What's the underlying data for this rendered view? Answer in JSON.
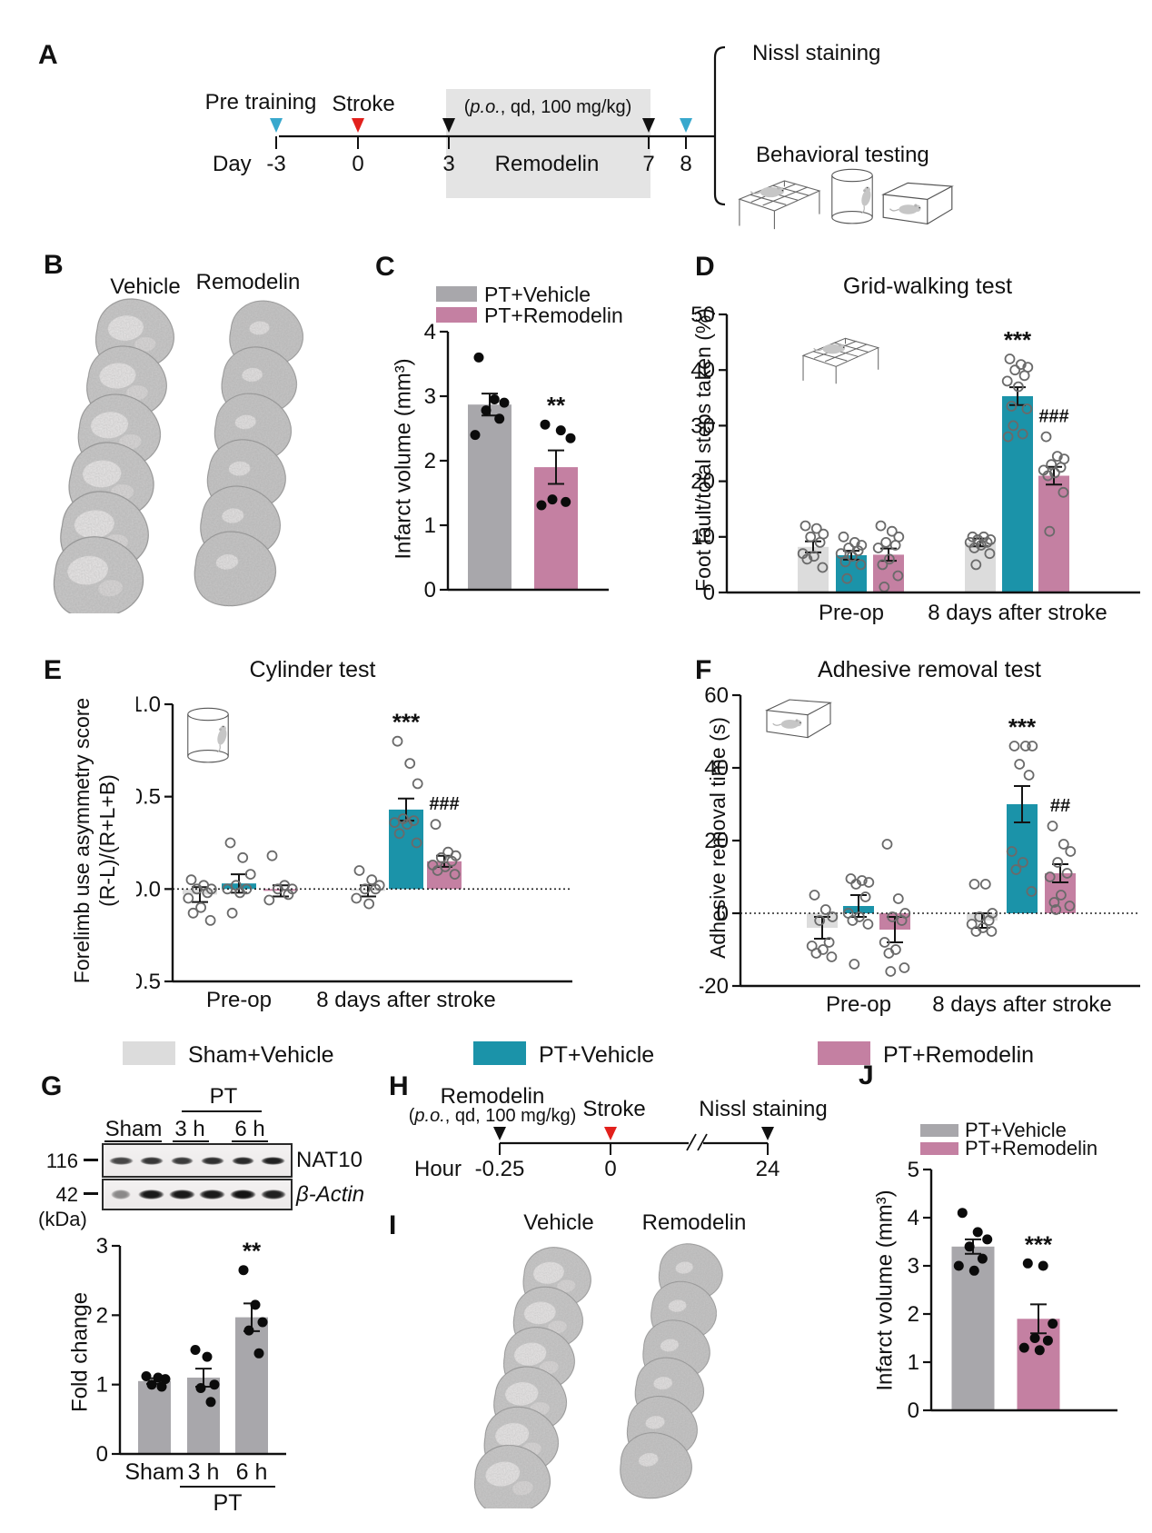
{
  "colors": {
    "bar_dark_gray": "#a8a7ab",
    "bar_light_gray": "#dcdcdc",
    "bar_teal": "#1b93a9",
    "bar_pink": "#c480a2",
    "point_open_stroke": "#6a6a6a",
    "point_filled": "#0b0b0b",
    "cyan_arrow": "#38a8cd",
    "red_arrow": "#e2201c",
    "black_arrow": "#111111",
    "timeline_box": "#e4e4e4",
    "axis": "#111111"
  },
  "panels": {
    "a": {
      "label": "A",
      "pre_training": "Pre training",
      "stroke": "Stroke",
      "dose_open": "(",
      "dose_po": "p.o.",
      "dose_rest": ", qd, 100 mg/kg)",
      "drug": "Remodelin",
      "axis": "Day",
      "days": [
        "-3",
        "0",
        "3",
        "7",
        "8"
      ],
      "nissl": "Nissl staining",
      "behavioral": "Behavioral testing"
    },
    "b": {
      "label": "B",
      "left": "Vehicle",
      "right": "Remodelin"
    },
    "c": {
      "label": "C",
      "legend": [
        "PT+Vehicle",
        "PT+Remodelin"
      ],
      "ylabel": "Infarct volume (mm³)"
    },
    "d": {
      "label": "D",
      "title": "Grid-walking test",
      "ylabel": "Foot fault/total steps taken (%)"
    },
    "e": {
      "label": "E",
      "title": "Cylinder test",
      "ylabel1": "Forelimb use asymmetry score",
      "ylabel2": "(R-L)/(R+L+B)"
    },
    "f": {
      "label": "F",
      "title": "Adhesive removal test",
      "ylabel": "Adhesive removal time (s)"
    },
    "legend_bottom": [
      {
        "key": "bar_light_gray",
        "label": "Sham+Vehicle"
      },
      {
        "key": "bar_teal",
        "label": "PT+Vehicle"
      },
      {
        "key": "bar_pink",
        "label": "PT+Remodelin"
      }
    ],
    "g": {
      "label": "G",
      "pt": "PT",
      "lanes": [
        "Sham",
        "3 h",
        "6 h"
      ],
      "mw1": "116",
      "mw2": "42",
      "kda": "(kDa)",
      "band1": "NAT10",
      "band2": "β-Actin",
      "ylabel": "Fold change"
    },
    "h": {
      "label": "H",
      "drug": "Remodelin",
      "dose_open": "(",
      "dose_po": "p.o.",
      "dose_rest": ", qd, 100 mg/kg)",
      "stroke": "Stroke",
      "nissl": "Nissl staining",
      "axis": "Hour",
      "ticks": [
        "-0.25",
        "0",
        "24"
      ]
    },
    "i": {
      "label": "I",
      "left": "Vehicle",
      "right": "Remodelin"
    },
    "j": {
      "label": "J",
      "legend": [
        "PT+Vehicle",
        "PT+Remodelin"
      ],
      "ylabel": "Infarct volume (mm³)"
    }
  },
  "chart_data": {
    "c": {
      "type": "bar",
      "title": "",
      "ylabel": "Infarct volume (mm³)",
      "ylim": [
        0,
        4
      ],
      "ytick_vals": [
        0,
        1,
        2,
        3,
        4
      ],
      "ytick_labels": [
        "0",
        "1",
        "2",
        "3",
        "4"
      ],
      "point_style": "filled",
      "zero_dashed": false,
      "groups": [
        {
          "label": "",
          "bars": [
            {
              "series": "PT+Vehicle",
              "color": "darkgray",
              "value": 2.87,
              "err": 0.17,
              "points": [
                3.6,
                2.95,
                2.9,
                2.78,
                2.65,
                2.4
              ],
              "sig": ""
            },
            {
              "series": "PT+Remodelin",
              "color": "pink",
              "value": 1.9,
              "err": 0.26,
              "points": [
                2.56,
                2.47,
                2.35,
                1.4,
                1.36,
                1.31
              ],
              "sig": "**"
            }
          ]
        }
      ]
    },
    "d": {
      "type": "grouped-bar",
      "title": "Grid-walking test",
      "ylabel": "Foot fault/total steps taken (%)",
      "ylim": [
        0,
        50
      ],
      "ytick_vals": [
        0,
        10,
        20,
        30,
        40,
        50
      ],
      "ytick_labels": [
        "0",
        "10",
        "20",
        "30",
        "40",
        "50"
      ],
      "point_style": "open",
      "zero_dashed": false,
      "groups": [
        {
          "label": "Pre-op",
          "bars": [
            {
              "series": "Sham+Vehicle",
              "color": "lightgray",
              "value": 8.2,
              "err": 1.0,
              "points": [
                12,
                11.5,
                10.5,
                10,
                9,
                7,
                6.5,
                6,
                4.5
              ],
              "sig": ""
            },
            {
              "series": "PT+Vehicle",
              "color": "teal",
              "value": 6.7,
              "err": 0.8,
              "points": [
                10,
                9,
                8.5,
                8,
                7.5,
                7,
                6.5,
                5.5,
                5,
                2.5
              ],
              "sig": ""
            },
            {
              "series": "PT+Remodelin",
              "color": "pink",
              "value": 6.8,
              "err": 1.1,
              "points": [
                12,
                11,
                10,
                9,
                8.5,
                8,
                6,
                5,
                3,
                1
              ],
              "sig": ""
            }
          ]
        },
        {
          "label": "8 days after stroke",
          "bars": [
            {
              "series": "Sham+Vehicle",
              "color": "lightgray",
              "value": 9.0,
              "err": 0.7,
              "points": [
                10,
                10,
                9.5,
                9.5,
                9,
                9,
                8.5,
                8,
                7,
                5
              ],
              "sig": ""
            },
            {
              "series": "PT+Vehicle",
              "color": "teal",
              "value": 35.3,
              "err": 1.6,
              "points": [
                42,
                41,
                40.5,
                40,
                39,
                38,
                37,
                33.5,
                33,
                30,
                28.5,
                28
              ],
              "sig": "***"
            },
            {
              "series": "PT+Remodelin",
              "color": "pink",
              "value": 21.0,
              "err": 1.6,
              "points": [
                28,
                24.5,
                24,
                23,
                22.5,
                22,
                21.5,
                21,
                18,
                11
              ],
              "sig": "###"
            }
          ]
        }
      ]
    },
    "e": {
      "type": "grouped-bar",
      "title": "Cylinder test",
      "ylabel": "Forelimb use asymmetry score (R-L)/(R+L+B)",
      "ylim": [
        -0.5,
        1.0
      ],
      "ytick_vals": [
        -0.5,
        0,
        0.5,
        1.0
      ],
      "ytick_labels": [
        "-0.5",
        "0.0",
        "0.5",
        "1.0"
      ],
      "point_style": "open",
      "zero_dashed": true,
      "groups": [
        {
          "label": "Pre-op",
          "bars": [
            {
              "series": "Sham+Vehicle",
              "color": "lightgray",
              "value": -0.03,
              "err": 0.04,
              "points": [
                0.05,
                0.02,
                0,
                0,
                -0.02,
                -0.05,
                -0.1,
                -0.13,
                -0.17
              ],
              "sig": ""
            },
            {
              "series": "PT+Vehicle",
              "color": "teal",
              "value": 0.03,
              "err": 0.05,
              "points": [
                0.25,
                0.17,
                0.08,
                0.02,
                0,
                0,
                -0.02,
                -0.13
              ],
              "sig": ""
            },
            {
              "series": "PT+Remodelin",
              "color": "pink",
              "value": -0.01,
              "err": 0.03,
              "points": [
                0.18,
                0.02,
                0,
                0,
                -0.03,
                -0.06
              ],
              "sig": ""
            }
          ]
        },
        {
          "label": "8 days after stroke",
          "bars": [
            {
              "series": "Sham+Vehicle",
              "color": "lightgray",
              "value": -0.01,
              "err": 0.03,
              "points": [
                0.1,
                0.05,
                0.02,
                0,
                0,
                -0.05,
                -0.08
              ],
              "sig": ""
            },
            {
              "series": "PT+Vehicle",
              "color": "teal",
              "value": 0.43,
              "err": 0.06,
              "points": [
                0.8,
                0.68,
                0.57,
                0.38,
                0.37,
                0.36,
                0.35,
                0.3,
                0.25
              ],
              "sig": "***"
            },
            {
              "series": "PT+Remodelin",
              "color": "pink",
              "value": 0.15,
              "err": 0.03,
              "points": [
                0.35,
                0.2,
                0.18,
                0.17,
                0.15,
                0.13,
                0.12,
                0.1,
                0.08
              ],
              "sig": "###"
            }
          ]
        }
      ]
    },
    "f": {
      "type": "grouped-bar",
      "title": "Adhesive removal test",
      "ylabel": "Adhesive removal time (s)",
      "ylim": [
        -20,
        60
      ],
      "ytick_vals": [
        -20,
        0,
        20,
        40,
        60
      ],
      "ytick_labels": [
        "-20",
        "0",
        "20",
        "40",
        "60"
      ],
      "point_style": "open",
      "zero_dashed": true,
      "groups": [
        {
          "label": "Pre-op",
          "bars": [
            {
              "series": "Sham+Vehicle",
              "color": "lightgray",
              "value": -4,
              "err": 3,
              "points": [
                5,
                1,
                -1,
                -2,
                -8,
                -9,
                -10,
                -11,
                -12
              ],
              "sig": ""
            },
            {
              "series": "PT+Vehicle",
              "color": "teal",
              "value": 2,
              "err": 3,
              "points": [
                9.5,
                9,
                8.5,
                8,
                4.5,
                0,
                -1,
                -2,
                -3,
                -14
              ],
              "sig": ""
            },
            {
              "series": "PT+Remodelin",
              "color": "pink",
              "value": -4.5,
              "err": 3.5,
              "points": [
                19,
                4,
                0,
                -1,
                -2,
                -8,
                -10,
                -11,
                -15,
                -16
              ],
              "sig": ""
            }
          ]
        },
        {
          "label": "8 days after stroke",
          "bars": [
            {
              "series": "Sham+Vehicle",
              "color": "lightgray",
              "value": -2,
              "err": 2,
              "points": [
                8,
                8,
                0,
                -1,
                -2,
                -3,
                -4,
                -5,
                -5
              ],
              "sig": ""
            },
            {
              "series": "PT+Vehicle",
              "color": "teal",
              "value": 30,
              "err": 5,
              "points": [
                46,
                46,
                46,
                41,
                38,
                17,
                14,
                12,
                6
              ],
              "sig": "***"
            },
            {
              "series": "PT+Remodelin",
              "color": "pink",
              "value": 11,
              "err": 2.5,
              "points": [
                24,
                19,
                17,
                14,
                11,
                10,
                5,
                3,
                2,
                1
              ],
              "sig": "##"
            }
          ]
        }
      ]
    },
    "g": {
      "type": "bar",
      "title": "",
      "ylabel": "Fold change",
      "ylim": [
        0,
        3
      ],
      "ytick_vals": [
        0,
        1,
        2,
        3
      ],
      "ytick_labels": [
        "0",
        "1",
        "2",
        "3"
      ],
      "point_style": "filled",
      "zero_dashed": false,
      "categories": [
        "Sham",
        "3 h",
        "6 h"
      ],
      "bracket_label": "PT",
      "groups": [
        {
          "label": "",
          "bars": [
            {
              "series": "Sham",
              "color": "darkgray",
              "value": 1.05,
              "err": 0.04,
              "points": [
                1.12,
                1.1,
                1.08,
                1.0,
                0.97
              ],
              "sig": ""
            },
            {
              "series": "3 h",
              "color": "darkgray",
              "value": 1.1,
              "err": 0.13,
              "points": [
                1.5,
                1.4,
                1.0,
                0.95,
                0.75
              ],
              "sig": ""
            },
            {
              "series": "6 h",
              "color": "darkgray",
              "value": 1.97,
              "err": 0.2,
              "points": [
                2.65,
                2.15,
                1.9,
                1.78,
                1.45
              ],
              "sig": "**"
            }
          ]
        }
      ]
    },
    "j": {
      "type": "bar",
      "title": "",
      "ylabel": "Infarct volume (mm³)",
      "ylim": [
        0,
        5
      ],
      "ytick_vals": [
        0,
        1,
        2,
        3,
        4,
        5
      ],
      "ytick_labels": [
        "0",
        "1",
        "2",
        "3",
        "4",
        "5"
      ],
      "point_style": "filled",
      "zero_dashed": false,
      "groups": [
        {
          "label": "",
          "bars": [
            {
              "series": "PT+Vehicle",
              "color": "darkgray",
              "value": 3.4,
              "err": 0.15,
              "points": [
                4.1,
                3.7,
                3.55,
                3.4,
                3.15,
                3.0,
                2.9
              ],
              "sig": ""
            },
            {
              "series": "PT+Remodelin",
              "color": "pink",
              "value": 1.9,
              "err": 0.3,
              "points": [
                3.05,
                3.0,
                1.8,
                1.5,
                1.45,
                1.3,
                1.25
              ],
              "sig": "***"
            }
          ]
        }
      ]
    }
  }
}
